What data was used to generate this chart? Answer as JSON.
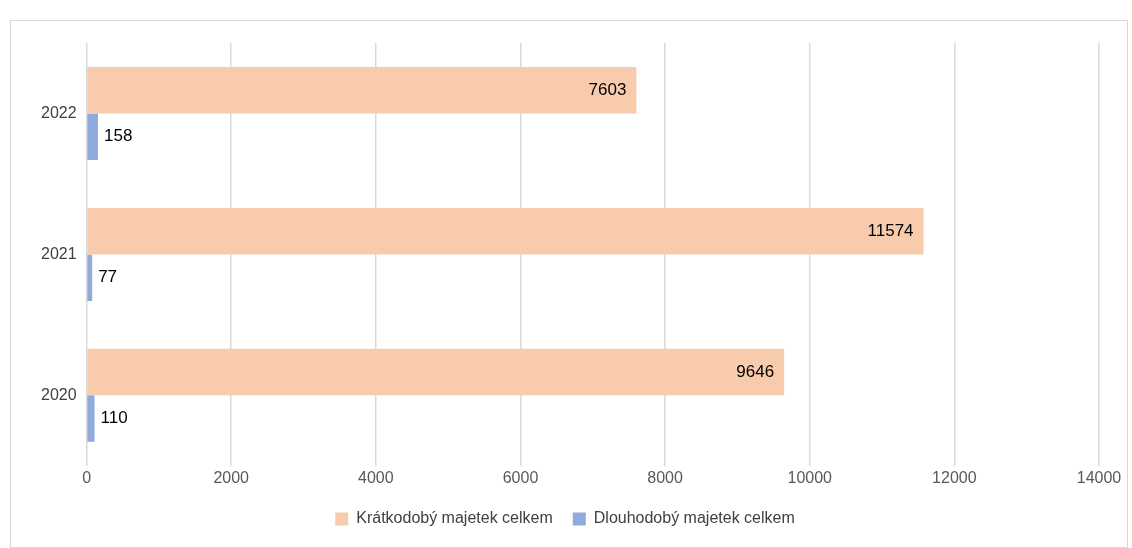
{
  "chart_data": {
    "type": "bar",
    "orientation": "horizontal",
    "categories": [
      "2022",
      "2021",
      "2020"
    ],
    "series": [
      {
        "name": "Krátkodobý majetek celkem",
        "color": "#f8cbad",
        "values": [
          7603,
          11574,
          9646
        ]
      },
      {
        "name": "Dlouhodobý majetek celkem",
        "color": "#8faadc",
        "values": [
          158,
          77,
          110
        ]
      }
    ],
    "xlim": [
      0,
      14000
    ],
    "xticks": [
      0,
      2000,
      4000,
      6000,
      8000,
      10000,
      12000,
      14000
    ],
    "grid": "x",
    "legend": "bottom",
    "data_labels": true
  }
}
